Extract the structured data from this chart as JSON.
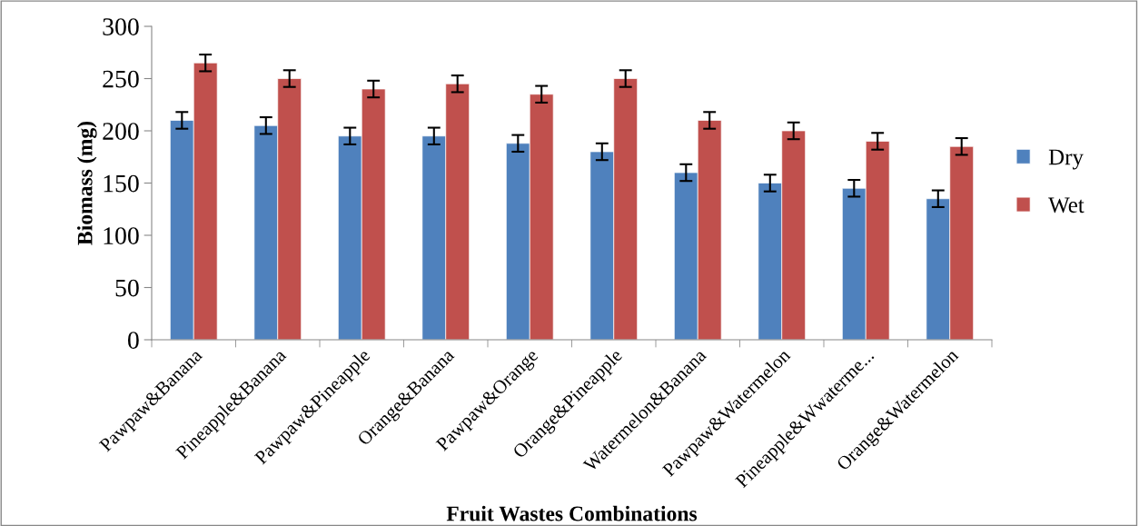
{
  "chart_data": {
    "type": "bar",
    "xlabel": "Fruit Wastes Combinations",
    "ylabel": "Biomass (mg)",
    "categories": [
      "Pawpaw&Banana",
      "Pineapple&Banana",
      "Pawpaw&Pineapple",
      "Orange&Banana",
      "Pawpaw&Orange",
      "Orange&Pineapple",
      "Watermelon&Banana",
      "Pawpaw&Watermelon",
      "Pineapple&Wwaterme...",
      "Orange&Watermelon"
    ],
    "series": [
      {
        "name": "Dry",
        "color": "#4f81bd",
        "values": [
          210,
          205,
          195,
          195,
          188,
          180,
          160,
          150,
          145,
          135
        ],
        "errors": [
          8,
          8,
          8,
          8,
          8,
          8,
          8,
          8,
          8,
          8
        ]
      },
      {
        "name": "Wet",
        "color": "#c0504d",
        "values": [
          265,
          250,
          240,
          245,
          235,
          250,
          210,
          200,
          190,
          185
        ],
        "errors": [
          8,
          8,
          8,
          8,
          8,
          8,
          8,
          8,
          8,
          8
        ]
      }
    ],
    "ylim": [
      0,
      300
    ],
    "yticks": [
      0,
      50,
      100,
      150,
      200,
      250,
      300
    ],
    "grid": false,
    "legend": "right"
  }
}
